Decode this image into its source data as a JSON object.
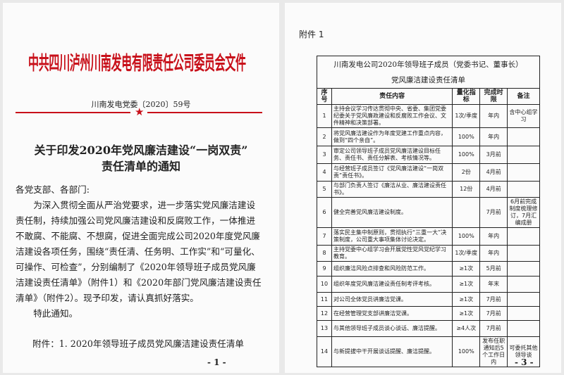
{
  "page1": {
    "header": "中共四川泸州川南发电有限责任公司委员会文件",
    "doc_number": "川南发电党委〔2020〕59号",
    "title_line1": "关于印发2020年党风廉洁建设“一岗双责”",
    "title_line2": "责任清单的通知",
    "salutation": "各党支部、各部门:",
    "paragraph": "为深入贯彻全面从严治党要求，进一步落实党风廉洁建设责任制，持续加强公司党风廉洁建设和反腐败工作，一体推进不敢腐、不能腐、不想腐，促进全面完成公司2020年度党风廉洁建设各项任务，围绕“责任清、任务明、工作实”和“可量化、可操作、可检查”，分别编制了《2020年领导班子成员党风廉洁建设责任清单》（附件1）和《2020年部门党风廉洁建设责任清单》（附件2）。现予印发，请认真抓好落实。",
    "closing": "特此通知。",
    "attachment": "附件：1. 2020年领导班子成员党风廉洁建设责任清单",
    "page_number": "- 1 -"
  },
  "page2": {
    "label": "附件 1",
    "table_title1": "川南发电公司2020年领导班子成员（党委书记、董事长）",
    "table_title2": "党风廉洁建设责任清单",
    "headers": [
      "序号",
      "责任内容",
      "量化指标",
      "完成时限",
      "备注"
    ],
    "rows": [
      [
        "1",
        "主持会议学习传达贯彻中央、省委、集团党委纪委关于党风廉政建设和反腐败工作会议、文件精神和决策部署。",
        "1次/季度",
        "年内",
        "含中心组学习"
      ],
      [
        "2",
        "将党风廉洁建设作为年度党建工作重点内容，做到“四个亲自”。",
        "100%",
        "年内",
        ""
      ],
      [
        "3",
        "审定公司领导班子成员党风廉洁建设目标任务、责任书、责任分解表、考核情况等。",
        "100%",
        "3月前",
        ""
      ],
      [
        "4",
        "与经营班子成员签订《党风廉洁建设“一岗双责”责任书》。",
        "2份",
        "4月前",
        ""
      ],
      [
        "5",
        "与部门负责人签订《廉洁从业、廉洁建设责任书》。",
        "12份",
        "4月前",
        ""
      ],
      [
        "6",
        "健全完善党风廉洁建设制度。",
        "",
        "7月前",
        "6月前完成制度梳理修订，7月汇编成册"
      ],
      [
        "7",
        "落实民主集中制原则，贯彻执行“三重一大”决策制度，公司重大事项集体讨论决定。",
        "100%",
        "年内",
        ""
      ],
      [
        "8",
        "主持党委中心组学习会开展党性党风党纪学习教育。",
        "1次/季度",
        "年内",
        ""
      ],
      [
        "9",
        "组织廉洁风险点排查和风险防范工作。",
        "≥1次",
        "5月前",
        ""
      ],
      [
        "10",
        "组织年度党风廉洁建设责任制考评考核。",
        "≥1次",
        "年末",
        ""
      ],
      [
        "11",
        "对公司全体党员讲廉洁党课。",
        "≥1次",
        "7月前",
        ""
      ],
      [
        "12",
        "在经营管理党支部讲廉洁党课。",
        "≥1次",
        "7月前",
        ""
      ],
      [
        "13",
        "与其他领导班子成员谈心谈话、廉洁提醒。",
        "≥4人次",
        "7月前",
        ""
      ],
      [
        "14",
        "与新提拔中干开展谈话提醒、廉洁提醒。",
        "100%",
        "发布任职通知后5个工作日内",
        "可委托其他领导谈"
      ]
    ],
    "page_number": "- 3 -"
  },
  "colors": {
    "red": "#c8101a"
  }
}
